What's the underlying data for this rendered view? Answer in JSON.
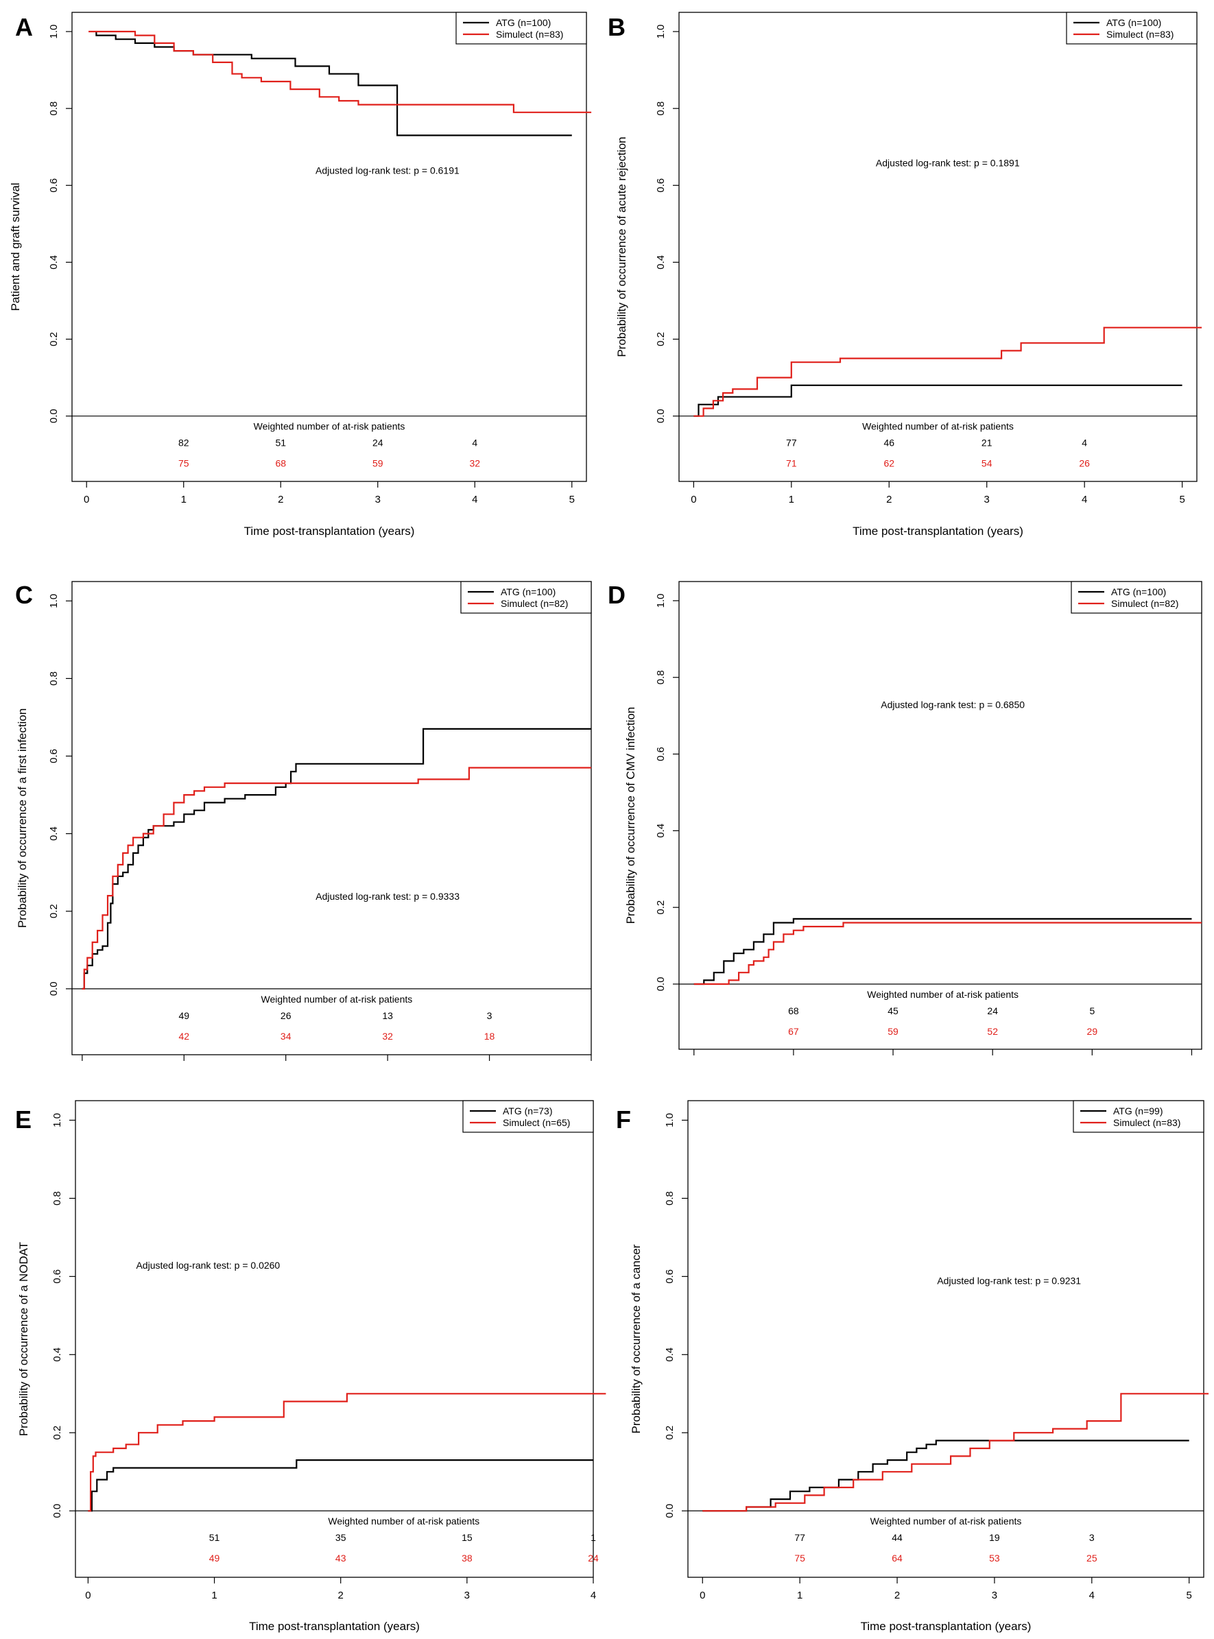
{
  "colors": {
    "atg": "#000000",
    "simulect": "#e0201b",
    "frame": "#000000"
  },
  "chart_data": [
    {
      "type": "line",
      "step": true,
      "letter": "A",
      "ylabel": "Patient and graft survival",
      "xlabel": "Time post-transplantation (years)",
      "xlim": [
        -0.15,
        5.15
      ],
      "ylim": [
        -0.17,
        1.05
      ],
      "xticks": [
        "0",
        "1",
        "2",
        "3",
        "4",
        "5"
      ],
      "yticks": [
        "0.0",
        "0.2",
        "0.4",
        "0.6",
        "0.8",
        "1.0"
      ],
      "legend": [
        "ATG (n=100)",
        "Simulect (n=83)"
      ],
      "annotation": "Adjusted log-rank test: p = 0.6191",
      "annot_pos": [
        3.1,
        0.63
      ],
      "risk_title": "Weighted number of at-risk patients",
      "risk_atg": [
        "82",
        "51",
        "24",
        "4"
      ],
      "risk_sim": [
        "75",
        "68",
        "59",
        "32"
      ],
      "risk_x": [
        1,
        2,
        3,
        4
      ],
      "series": [
        {
          "name": "ATG (n=100)",
          "x": [
            0.1,
            0.1,
            0.3,
            0.5,
            0.7,
            0.9,
            1.1,
            1.4,
            1.7,
            2.15,
            2.5,
            2.8,
            3.2,
            5.0
          ],
          "y": [
            1.0,
            0.99,
            0.98,
            0.97,
            0.96,
            0.95,
            0.94,
            0.94,
            0.93,
            0.91,
            0.89,
            0.86,
            0.73,
            0.73
          ]
        },
        {
          "name": "Simulect (n=83)",
          "x": [
            0.02,
            0.5,
            0.7,
            0.9,
            1.1,
            1.3,
            1.5,
            1.6,
            1.8,
            2.1,
            2.4,
            2.6,
            2.8,
            3.1,
            3.6,
            4.4,
            5.2
          ],
          "y": [
            1.0,
            0.99,
            0.97,
            0.95,
            0.94,
            0.92,
            0.89,
            0.88,
            0.87,
            0.85,
            0.83,
            0.82,
            0.81,
            0.81,
            0.81,
            0.79,
            0.79
          ]
        }
      ]
    },
    {
      "type": "line",
      "step": true,
      "letter": "B",
      "ylabel": "Probability of occurrence of acute rejection",
      "xlabel": "Time post-transplantation (years)",
      "xlim": [
        -0.15,
        5.15
      ],
      "ylim": [
        -0.17,
        1.05
      ],
      "xticks": [
        "0",
        "1",
        "2",
        "3",
        "4",
        "5"
      ],
      "yticks": [
        "0.0",
        "0.2",
        "0.4",
        "0.6",
        "0.8",
        "1.0"
      ],
      "legend": [
        "ATG (n=100)",
        "Simulect (n=83)"
      ],
      "annotation": "Adjusted log-rank test: p = 0.1891",
      "annot_pos": [
        2.6,
        0.65
      ],
      "risk_title": "Weighted number of at-risk patients",
      "risk_atg": [
        "77",
        "46",
        "21",
        "4"
      ],
      "risk_sim": [
        "71",
        "62",
        "54",
        "26"
      ],
      "risk_x": [
        1,
        2,
        3,
        4
      ],
      "series": [
        {
          "name": "ATG (n=100)",
          "x": [
            0.0,
            0.05,
            0.25,
            1.0,
            5.0
          ],
          "y": [
            0.0,
            0.03,
            0.05,
            0.08,
            0.08
          ]
        },
        {
          "name": "Simulect (n=83)",
          "x": [
            0.0,
            0.1,
            0.2,
            0.3,
            0.4,
            0.65,
            1.0,
            1.2,
            1.5,
            2.0,
            2.5,
            3.0,
            3.15,
            3.35,
            4.2,
            5.2
          ],
          "y": [
            0.0,
            0.02,
            0.04,
            0.06,
            0.07,
            0.1,
            0.14,
            0.14,
            0.15,
            0.15,
            0.15,
            0.15,
            0.17,
            0.19,
            0.23,
            0.23
          ]
        }
      ]
    },
    {
      "type": "line",
      "step": true,
      "letter": "C",
      "ylabel": "Probability of occurrence of a first infection",
      "xlabel": "",
      "xlim": [
        -0.1,
        5.0
      ],
      "ylim": [
        -0.17,
        1.05
      ],
      "xticks": [
        "",
        "",
        "",
        "",
        "",
        ""
      ],
      "yticks": [
        "0.0",
        "0.2",
        "0.4",
        "0.6",
        "0.8",
        "1.0"
      ],
      "legend": [
        "ATG (n=100)",
        "Simulect (n=82)"
      ],
      "annotation": "Adjusted log-rank test: p = 0.9333",
      "annot_pos": [
        3.0,
        0.23
      ],
      "risk_title": "Weighted number of at-risk patients",
      "risk_atg": [
        "49",
        "26",
        "13",
        "3"
      ],
      "risk_sim": [
        "42",
        "34",
        "32",
        "18"
      ],
      "risk_x": [
        1,
        2,
        3,
        4
      ],
      "series": [
        {
          "name": "ATG (n=100)",
          "x": [
            0.0,
            0.02,
            0.05,
            0.1,
            0.15,
            0.2,
            0.25,
            0.28,
            0.3,
            0.35,
            0.4,
            0.45,
            0.5,
            0.55,
            0.6,
            0.65,
            0.7,
            0.8,
            0.9,
            1.0,
            1.1,
            1.2,
            1.4,
            1.6,
            1.9,
            2.0,
            2.05,
            2.1,
            3.0,
            3.35,
            5.0
          ],
          "y": [
            0.0,
            0.04,
            0.06,
            0.09,
            0.1,
            0.11,
            0.17,
            0.22,
            0.27,
            0.29,
            0.3,
            0.32,
            0.35,
            0.37,
            0.39,
            0.41,
            0.42,
            0.42,
            0.43,
            0.45,
            0.46,
            0.48,
            0.49,
            0.5,
            0.52,
            0.53,
            0.56,
            0.58,
            0.58,
            0.67,
            0.67
          ]
        },
        {
          "name": "Simulect (n=82)",
          "x": [
            0.0,
            0.02,
            0.05,
            0.1,
            0.15,
            0.2,
            0.25,
            0.3,
            0.35,
            0.4,
            0.45,
            0.5,
            0.6,
            0.7,
            0.8,
            0.9,
            1.0,
            1.1,
            1.2,
            1.4,
            1.6,
            1.8,
            2.0,
            3.0,
            3.3,
            3.8,
            5.0
          ],
          "y": [
            0.0,
            0.05,
            0.08,
            0.12,
            0.15,
            0.19,
            0.24,
            0.29,
            0.32,
            0.35,
            0.37,
            0.39,
            0.4,
            0.42,
            0.45,
            0.48,
            0.5,
            0.51,
            0.52,
            0.53,
            0.53,
            0.53,
            0.53,
            0.53,
            0.54,
            0.57,
            0.57
          ]
        }
      ]
    },
    {
      "type": "line",
      "step": true,
      "letter": "D",
      "ylabel": "Probability of occurrence of CMV infection",
      "xlabel": "",
      "xlim": [
        -0.15,
        5.1
      ],
      "ylim": [
        -0.17,
        1.05
      ],
      "xticks": [
        "",
        "",
        "",
        "",
        "",
        ""
      ],
      "yticks": [
        "0.0",
        "0.2",
        "0.4",
        "0.6",
        "0.8",
        "1.0"
      ],
      "legend": [
        "ATG (n=100)",
        "Simulect (n=82)"
      ],
      "annotation": "Adjusted log-rank test: p = 0.6850",
      "annot_pos": [
        2.6,
        0.72
      ],
      "risk_title": "Weighted number of at-risk patients",
      "risk_atg": [
        "68",
        "45",
        "24",
        "5"
      ],
      "risk_sim": [
        "67",
        "59",
        "52",
        "29"
      ],
      "risk_x": [
        1,
        2,
        3,
        4
      ],
      "series": [
        {
          "name": "ATG (n=100)",
          "x": [
            0.0,
            0.1,
            0.2,
            0.3,
            0.4,
            0.5,
            0.6,
            0.7,
            0.8,
            0.9,
            1.0,
            5.0
          ],
          "y": [
            0.0,
            0.01,
            0.03,
            0.06,
            0.08,
            0.09,
            0.11,
            0.13,
            0.16,
            0.16,
            0.17,
            0.17
          ]
        },
        {
          "name": "Simulect (n=82)",
          "x": [
            0.0,
            0.35,
            0.45,
            0.55,
            0.6,
            0.7,
            0.75,
            0.8,
            0.9,
            1.0,
            1.1,
            1.5,
            5.1
          ],
          "y": [
            0.0,
            0.01,
            0.03,
            0.05,
            0.06,
            0.07,
            0.09,
            0.11,
            0.13,
            0.14,
            0.15,
            0.16,
            0.16
          ]
        }
      ]
    },
    {
      "type": "line",
      "step": true,
      "letter": "E",
      "ylabel": "Probability of occurrence of a NODAT",
      "xlabel": "Time post-transplantation (years)",
      "xlim": [
        -0.1,
        4.0
      ],
      "ylim": [
        -0.17,
        1.05
      ],
      "xticks": [
        "0",
        "1",
        "2",
        "3",
        "4"
      ],
      "yticks": [
        "0.0",
        "0.2",
        "0.4",
        "0.6",
        "0.8",
        "1.0"
      ],
      "legend": [
        "ATG (n=73)",
        "Simulect (n=65)"
      ],
      "annotation": "Adjusted log-rank test: p = 0.0260",
      "annot_pos": [
        0.95,
        0.62
      ],
      "risk_title": "Weighted number of at-risk patients",
      "risk_atg": [
        "51",
        "35",
        "15",
        "1"
      ],
      "risk_sim": [
        "49",
        "43",
        "38",
        "24"
      ],
      "risk_x": [
        1,
        2,
        3,
        4
      ],
      "series": [
        {
          "name": "ATG (n=73)",
          "x": [
            0.0,
            0.03,
            0.07,
            0.15,
            0.2,
            1.6,
            1.65,
            4.0
          ],
          "y": [
            0.0,
            0.05,
            0.08,
            0.1,
            0.11,
            0.11,
            0.13,
            0.13
          ]
        },
        {
          "name": "Simulect (n=65)",
          "x": [
            0.0,
            0.02,
            0.04,
            0.06,
            0.2,
            0.3,
            0.4,
            0.55,
            0.75,
            1.0,
            1.2,
            1.5,
            1.55,
            2.05,
            4.1
          ],
          "y": [
            0.0,
            0.1,
            0.14,
            0.15,
            0.16,
            0.17,
            0.2,
            0.22,
            0.23,
            0.24,
            0.24,
            0.24,
            0.28,
            0.3,
            0.3
          ]
        }
      ]
    },
    {
      "type": "line",
      "step": true,
      "letter": "F",
      "ylabel": "Probability of occurrence of a cancer",
      "xlabel": "Time post-transplantation (years)",
      "xlim": [
        -0.15,
        5.15
      ],
      "ylim": [
        -0.17,
        1.05
      ],
      "xticks": [
        "0",
        "1",
        "2",
        "3",
        "4",
        "5"
      ],
      "yticks": [
        "0.0",
        "0.2",
        "0.4",
        "0.6",
        "0.8",
        "1.0"
      ],
      "legend": [
        "ATG (n=99)",
        "Simulect (n=83)"
      ],
      "annotation": "Adjusted log-rank test: p = 0.9231",
      "annot_pos": [
        3.15,
        0.58
      ],
      "risk_title": "Weighted number of at-risk patients",
      "risk_atg": [
        "77",
        "44",
        "19",
        "3"
      ],
      "risk_sim": [
        "75",
        "64",
        "53",
        "25"
      ],
      "risk_x": [
        1,
        2,
        3,
        4
      ],
      "series": [
        {
          "name": "ATG (n=99)",
          "x": [
            0.0,
            0.45,
            0.7,
            0.9,
            1.1,
            1.4,
            1.6,
            1.75,
            1.9,
            2.1,
            2.2,
            2.3,
            2.4,
            2.9,
            5.0
          ],
          "y": [
            0.0,
            0.01,
            0.03,
            0.05,
            0.06,
            0.08,
            0.1,
            0.12,
            0.13,
            0.15,
            0.16,
            0.17,
            0.18,
            0.18,
            0.18
          ]
        },
        {
          "name": "Simulect (n=83)",
          "x": [
            0.0,
            0.45,
            0.75,
            1.05,
            1.25,
            1.55,
            1.85,
            2.15,
            2.55,
            2.75,
            2.95,
            3.2,
            3.6,
            3.95,
            4.3,
            5.2
          ],
          "y": [
            0.0,
            0.01,
            0.02,
            0.04,
            0.06,
            0.08,
            0.1,
            0.12,
            0.14,
            0.16,
            0.18,
            0.2,
            0.21,
            0.23,
            0.3,
            0.3
          ]
        }
      ]
    }
  ]
}
